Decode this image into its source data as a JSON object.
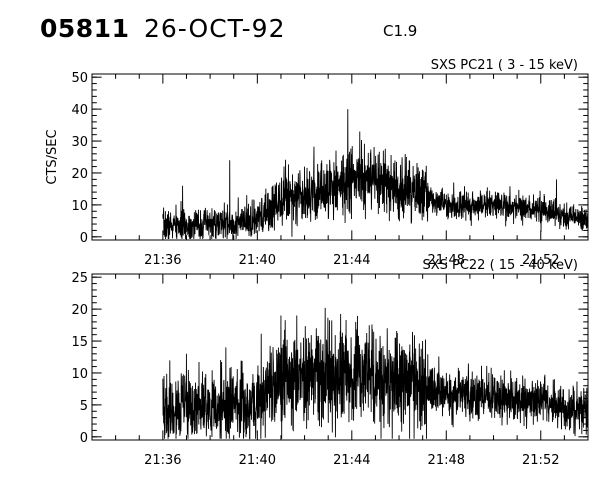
{
  "header": {
    "event_id": "05811",
    "date": "26-OCT-92",
    "flare_class": "C1.9"
  },
  "chart_data": [
    {
      "type": "line",
      "title": "SXS PC21  (  3 - 15 keV)",
      "ylabel": "CTS/SEC",
      "xlabel": "",
      "x_range": [
        "21:33",
        "21:54"
      ],
      "ylim": [
        -1,
        51
      ],
      "yticks": [
        0,
        10,
        20,
        30,
        40,
        50
      ],
      "xticks": [
        "21:36",
        "21:40",
        "21:44",
        "21:48",
        "21:52"
      ],
      "grid": false,
      "profile_time_min": [
        36.0,
        37.0,
        38.0,
        39.0,
        40.0,
        40.5,
        41.0,
        42.0,
        43.0,
        44.0,
        45.0,
        46.0,
        47.0,
        47.3,
        48.0,
        49.0,
        50.0,
        51.0,
        52.0,
        53.0,
        54.0
      ],
      "profile_mean_cts": [
        3.5,
        3.5,
        4.0,
        4.0,
        5.0,
        8.0,
        13.0,
        13.5,
        15.0,
        18.0,
        17.0,
        15.0,
        13.5,
        12.5,
        10.0,
        10.0,
        10.0,
        9.5,
        8.5,
        6.5,
        5.5
      ],
      "spikes": [
        {
          "t": "21:43:50",
          "v": 40
        },
        {
          "t": "21:38:50",
          "v": 24
        },
        {
          "t": "21:44:20",
          "v": 33
        },
        {
          "t": "21:43:20",
          "v": 27
        },
        {
          "t": "21:45:20",
          "v": 27
        },
        {
          "t": "21:36:50",
          "v": 16
        },
        {
          "t": "21:52:40",
          "v": 18
        },
        {
          "t": "21:42:00",
          "v": 22
        }
      ]
    },
    {
      "type": "line",
      "title": "SXS PC22  ( 15 - 40 keV)",
      "ylabel": "",
      "xlabel": "",
      "x_range": [
        "21:33",
        "21:54"
      ],
      "ylim": [
        -0.5,
        25.5
      ],
      "yticks": [
        0,
        5,
        10,
        15,
        20,
        25
      ],
      "xticks": [
        "21:36",
        "21:40",
        "21:44",
        "21:48",
        "21:52"
      ],
      "grid": false,
      "profile_time_min": [
        36.0,
        37.0,
        38.0,
        39.0,
        40.0,
        40.5,
        41.0,
        42.0,
        43.0,
        44.0,
        45.0,
        46.0,
        47.0,
        47.3,
        48.0,
        49.0,
        50.0,
        51.0,
        52.0,
        53.0,
        54.0
      ],
      "profile_mean_cts": [
        4.5,
        4.5,
        4.5,
        5.0,
        5.5,
        7.5,
        9.5,
        9.0,
        9.5,
        10.0,
        9.0,
        8.5,
        8.0,
        7.5,
        6.5,
        6.5,
        6.5,
        6.0,
        5.5,
        4.5,
        4.5
      ],
      "spikes": [
        {
          "t": "21:41:00",
          "v": 19
        },
        {
          "t": "21:41:40",
          "v": 19
        },
        {
          "t": "21:44:10",
          "v": 18
        },
        {
          "t": "21:42:30",
          "v": 17
        },
        {
          "t": "21:45:30",
          "v": 17
        },
        {
          "t": "21:37:00",
          "v": 13
        },
        {
          "t": "21:38:40",
          "v": 14
        },
        {
          "t": "21:47:00",
          "v": 15
        }
      ]
    }
  ]
}
